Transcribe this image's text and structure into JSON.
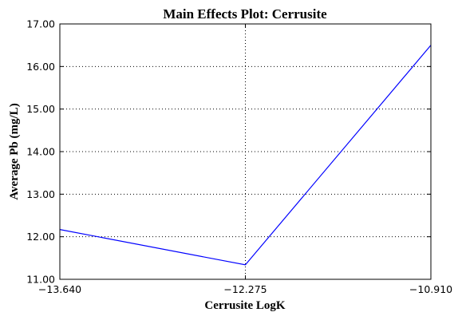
{
  "chart_data": {
    "type": "line",
    "title": "Main Effects Plot: Cerrusite",
    "xlabel": "Cerrusite LogK",
    "ylabel": "Average Pb (mg/L)",
    "x": [
      -13.64,
      -12.275,
      -10.91
    ],
    "x_tick_labels": [
      "−13.640",
      "−12.275",
      "−10.910"
    ],
    "y_ticks": [
      11.0,
      12.0,
      13.0,
      14.0,
      15.0,
      16.0,
      17.0
    ],
    "y_tick_labels": [
      "11.00",
      "12.00",
      "13.00",
      "14.00",
      "15.00",
      "16.00",
      "17.00"
    ],
    "xlim": [
      -13.64,
      -10.91
    ],
    "ylim": [
      11.0,
      17.0
    ],
    "grid": true,
    "series": [
      {
        "values": [
          12.17,
          11.34,
          16.5
        ],
        "color": "#0000ff"
      }
    ]
  }
}
